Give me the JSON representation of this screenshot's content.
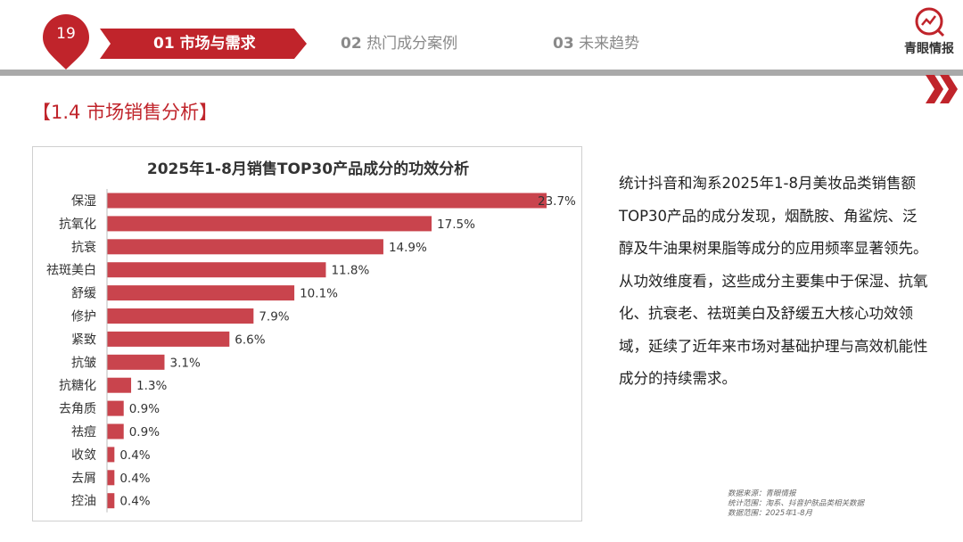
{
  "header": {
    "page_number": "19",
    "nav": [
      {
        "num": "01",
        "label": "市场与需求"
      },
      {
        "num": "02",
        "label": "热门成分案例"
      },
      {
        "num": "03",
        "label": "未来趋势"
      }
    ],
    "logo_text": "青眼情报",
    "accent_color": "#c0242b"
  },
  "section_title": "【1.4 市场销售分析】",
  "chart_data": {
    "type": "bar",
    "orientation": "horizontal",
    "title": "2025年1-8月销售TOP30产品成分的功效分析",
    "categories": [
      "保湿",
      "抗氧化",
      "抗衰",
      "祛斑美白",
      "舒缓",
      "修护",
      "紧致",
      "抗皱",
      "抗糖化",
      "去角质",
      "祛痘",
      "收敛",
      "去屑",
      "控油"
    ],
    "values": [
      23.7,
      17.5,
      14.9,
      11.8,
      10.1,
      7.9,
      6.6,
      3.1,
      1.3,
      0.9,
      0.9,
      0.4,
      0.4,
      0.4
    ],
    "value_labels": [
      "23.7%",
      "17.5%",
      "14.9%",
      "11.8%",
      "10.1%",
      "7.9%",
      "6.6%",
      "3.1%",
      "1.3%",
      "0.9%",
      "0.9%",
      "0.4%",
      "0.4%",
      "0.4%"
    ],
    "xlim": [
      0,
      23.7
    ],
    "bar_color": "#c9444d",
    "grid": false
  },
  "body_text": {
    "p1": "统计抖音和淘系2025年1-8月美妆品类销售额TOP30产品的成分发现，烟酰胺、角鲨烷、泛醇及牛油果树果脂等成分的应用频率显著领先。",
    "p2": "从功效维度看，这些成分主要集中于保湿、抗氧化、抗衰老、祛斑美白及舒缓五大核心功效领域，延续了近年来市场对基础护理与高效机能性成分的持续需求。"
  },
  "source": {
    "line1": "数据来源：青眼情报",
    "line2": "统计范围：淘系、抖音护肤品类相关数据",
    "line3": "数据范围：2025年1-8月"
  }
}
